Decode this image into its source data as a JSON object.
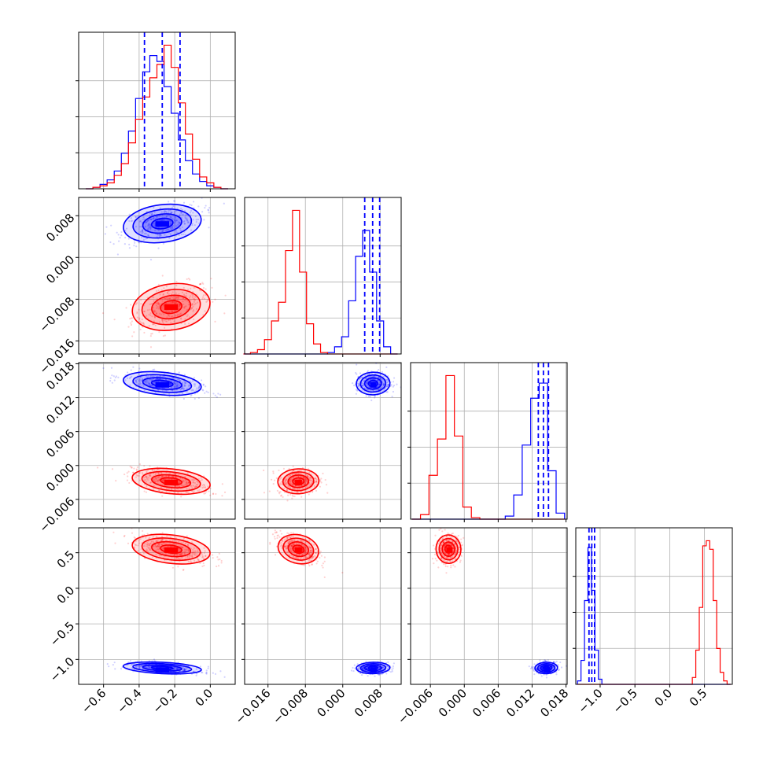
{
  "chart_data": {
    "type": "corner",
    "title": "",
    "colors": {
      "series_a": "#ff0000",
      "series_b": "#0000ff"
    },
    "grid": true,
    "series": [
      {
        "color": "red",
        "means": [
          -0.22,
          -0.0095,
          -0.0028,
          0.55
        ],
        "std": [
          0.11,
          0.0022,
          0.0011,
          0.1
        ]
      },
      {
        "color": "blue",
        "means": [
          -0.27,
          0.0065,
          0.0145,
          -1.12
        ],
        "std": [
          0.11,
          0.0018,
          0.001,
          0.04
        ]
      }
    ],
    "histograms": [
      {
        "panel": "p0",
        "xlim": [
          -0.74,
          0.14
        ],
        "bins": [
          -0.68,
          -0.64,
          -0.6,
          -0.56,
          -0.52,
          -0.48,
          -0.44,
          -0.4,
          -0.36,
          -0.32,
          -0.28,
          -0.24,
          -0.2,
          -0.16,
          -0.12,
          -0.08,
          -0.04,
          0.0,
          0.04,
          0.08
        ],
        "red": [
          0,
          1,
          2,
          4,
          9,
          17,
          31,
          47,
          62,
          75,
          84,
          97,
          82,
          58,
          37,
          20,
          8,
          4,
          1,
          0
        ],
        "blue": [
          0,
          1,
          3,
          6,
          12,
          24,
          39,
          61,
          79,
          90,
          86,
          69,
          51,
          33,
          19,
          10,
          5,
          2,
          1,
          0
        ],
        "quantiles": [
          -0.37,
          -0.27,
          -0.17
        ]
      },
      {
        "panel": "p1",
        "xlim": [
          -0.021,
          0.0125
        ],
        "bins": [
          -0.0205,
          -0.019,
          -0.0175,
          -0.016,
          -0.0145,
          -0.013,
          -0.0115,
          -0.01,
          -0.0085,
          -0.007,
          -0.0055,
          -0.004,
          -0.0025,
          -0.001,
          0.0005,
          0.002,
          0.0035,
          0.005,
          0.0065,
          0.008,
          0.0095,
          0.011
        ],
        "red": [
          0,
          1,
          3,
          10,
          23,
          36,
          72,
          100,
          57,
          21,
          7,
          1,
          0,
          0,
          0,
          0,
          0,
          0,
          0,
          0,
          0,
          0
        ],
        "blue": [
          0,
          0,
          0,
          0,
          0,
          0,
          0,
          0,
          0,
          0,
          0,
          0,
          1,
          5,
          12,
          37,
          68,
          86,
          57,
          23,
          5,
          0
        ],
        "quantiles": [
          0.0047,
          0.0064,
          0.0079
        ]
      },
      {
        "panel": "p2",
        "xlim": [
          -0.0095,
          0.0182
        ],
        "bins": [
          -0.0085,
          -0.007,
          -0.0055,
          -0.004,
          -0.0025,
          -0.001,
          0.0005,
          0.002,
          0.0035,
          0.005,
          0.0065,
          0.008,
          0.0095,
          0.011,
          0.0125,
          0.014,
          0.0155,
          0.017
        ],
        "red": [
          0,
          3,
          29,
          53,
          95,
          55,
          8,
          1,
          0,
          0,
          0,
          0,
          0,
          0,
          0,
          0,
          0,
          0
        ],
        "blue": [
          0,
          0,
          0,
          0,
          0,
          0,
          0,
          0,
          0,
          0,
          0,
          2,
          16,
          49,
          80,
          90,
          32,
          4
        ],
        "quantiles": [
          0.0131,
          0.014,
          0.0149
        ]
      },
      {
        "panel": "p3",
        "xlim": [
          -1.35,
          0.9
        ],
        "bins": [
          -1.3,
          -1.25,
          -1.2,
          -1.15,
          -1.1,
          -1.05,
          -1.0,
          -0.95,
          0.3,
          0.35,
          0.4,
          0.45,
          0.5,
          0.55,
          0.6,
          0.65,
          0.7,
          0.75,
          0.8,
          0.85
        ],
        "red": [
          0,
          0,
          0,
          0,
          0,
          0,
          0,
          0,
          0,
          4,
          20,
          45,
          81,
          84,
          79,
          49,
          21,
          7,
          2,
          0
        ],
        "blue": [
          2,
          14,
          49,
          80,
          55,
          20,
          3,
          0,
          0,
          0,
          0,
          0,
          0,
          0,
          0,
          0,
          0,
          0,
          0,
          0
        ],
        "quantiles": [
          -1.16,
          -1.12,
          -1.08
        ]
      }
    ],
    "axes": {
      "x": [
        {
          "lim": [
            -0.74,
            0.14
          ],
          "ticks": [
            -0.6,
            -0.4,
            -0.2,
            0.0
          ],
          "labels": [
            "−0.6",
            "−0.4",
            "−0.2",
            "0.0"
          ]
        },
        {
          "lim": [
            -0.021,
            0.0125
          ],
          "ticks": [
            -0.016,
            -0.008,
            0.0,
            0.008
          ],
          "labels": [
            "−0.016",
            "−0.008",
            "0.000",
            "0.008"
          ]
        },
        {
          "lim": [
            -0.0095,
            0.0182
          ],
          "ticks": [
            -0.006,
            0.0,
            0.006,
            0.012,
            0.018
          ],
          "labels": [
            "−0.006",
            "0.000",
            "0.006",
            "0.012",
            "0.018"
          ]
        },
        {
          "lim": [
            -1.35,
            0.9
          ],
          "ticks": [
            -1.0,
            -0.5,
            0.0,
            0.5
          ],
          "labels": [
            "−1.0",
            "−0.5",
            "0.0",
            "0.5"
          ]
        }
      ],
      "y": [
        null,
        {
          "lim": [
            -0.0185,
            0.0115
          ],
          "ticks": [
            -0.016,
            -0.008,
            0.0,
            0.008
          ],
          "labels": [
            "−0.016",
            "−0.008",
            "0.000",
            "0.008"
          ]
        },
        {
          "lim": [
            -0.0095,
            0.0182
          ],
          "ticks": [
            -0.006,
            0.0,
            0.006,
            0.012,
            0.018
          ],
          "labels": [
            "−0.006",
            "0.000",
            "0.006",
            "0.012",
            "0.018"
          ]
        },
        {
          "lim": [
            -1.35,
            0.85
          ],
          "ticks": [
            -1.0,
            -0.5,
            0.0,
            0.5
          ],
          "labels": [
            "−1.0",
            "−0.5",
            "0.0",
            "0.5"
          ]
        }
      ]
    }
  }
}
